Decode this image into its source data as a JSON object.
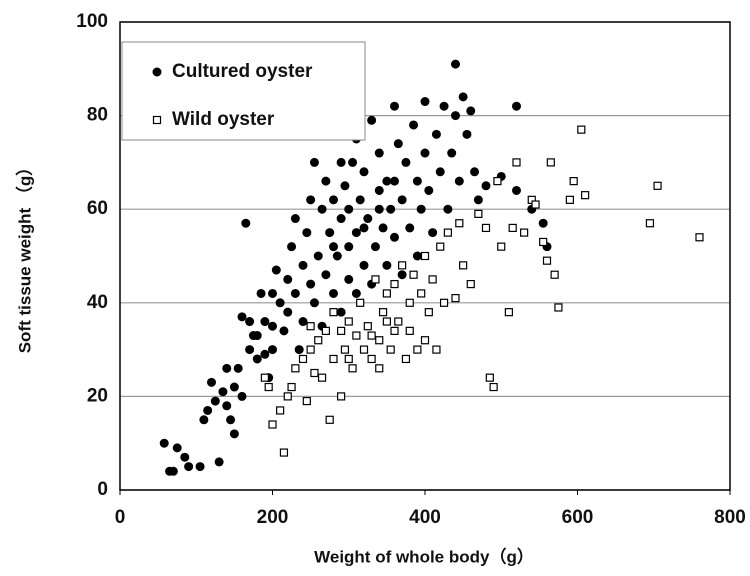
{
  "chart_data": {
    "type": "scatter",
    "xlabel": "Weight of whole body（g）",
    "ylabel": "Soft tissue weight （g）",
    "xlim": [
      0,
      800
    ],
    "ylim": [
      0,
      100
    ],
    "xticks": [
      0,
      200,
      400,
      600,
      800
    ],
    "yticks": [
      0,
      20,
      40,
      60,
      80,
      100
    ],
    "grid": true,
    "legend": "upper left",
    "series": [
      {
        "name": "Cultured oyster",
        "color": "#000000",
        "marker": "circle",
        "filled": true,
        "x": [
          58,
          65,
          70,
          75,
          85,
          90,
          105,
          110,
          115,
          120,
          125,
          130,
          135,
          140,
          145,
          150,
          155,
          160,
          160,
          165,
          170,
          175,
          180,
          185,
          190,
          195,
          200,
          200,
          205,
          210,
          215,
          220,
          220,
          225,
          230,
          235,
          240,
          240,
          245,
          250,
          255,
          255,
          260,
          265,
          265,
          270,
          275,
          280,
          280,
          285,
          290,
          290,
          295,
          300,
          300,
          305,
          310,
          310,
          315,
          320,
          320,
          325,
          330,
          330,
          335,
          340,
          340,
          345,
          350,
          350,
          355,
          360,
          360,
          365,
          370,
          370,
          375,
          380,
          385,
          390,
          390,
          395,
          400,
          400,
          405,
          410,
          415,
          420,
          425,
          430,
          435,
          440,
          440,
          445,
          450,
          455,
          460,
          465,
          470,
          480,
          500,
          520,
          520,
          540,
          555,
          560,
          230,
          250,
          270,
          290,
          310,
          280,
          300,
          320,
          340,
          360,
          200,
          180,
          170,
          190,
          150,
          140
        ],
        "values": [
          10,
          4,
          4,
          9,
          7,
          5,
          5,
          15,
          17,
          23,
          19,
          6,
          21,
          26,
          15,
          12,
          26,
          20,
          37,
          57,
          36,
          33,
          28,
          42,
          36,
          24,
          42,
          30,
          47,
          40,
          34,
          45,
          38,
          52,
          42,
          30,
          48,
          36,
          55,
          44,
          70,
          40,
          50,
          60,
          35,
          46,
          55,
          62,
          42,
          50,
          58,
          38,
          65,
          52,
          45,
          70,
          55,
          42,
          62,
          48,
          68,
          58,
          79,
          44,
          52,
          64,
          72,
          56,
          48,
          66,
          60,
          82,
          54,
          74,
          62,
          46,
          70,
          56,
          78,
          66,
          50,
          60,
          83,
          72,
          64,
          55,
          76,
          68,
          82,
          60,
          72,
          91,
          80,
          66,
          84,
          76,
          81,
          68,
          62,
          65,
          67,
          82,
          64,
          60,
          57,
          52,
          58,
          62,
          66,
          70,
          75,
          52,
          60,
          56,
          60,
          66,
          35,
          33,
          30,
          29,
          22,
          18
        ]
      },
      {
        "name": "Wild oyster",
        "color": "#000000",
        "marker": "square",
        "filled": false,
        "x": [
          215,
          200,
          210,
          220,
          225,
          230,
          190,
          195,
          240,
          245,
          250,
          255,
          260,
          265,
          270,
          275,
          280,
          280,
          290,
          295,
          300,
          305,
          310,
          315,
          320,
          325,
          330,
          335,
          340,
          345,
          350,
          355,
          360,
          365,
          370,
          375,
          380,
          385,
          390,
          395,
          400,
          405,
          410,
          415,
          420,
          425,
          430,
          440,
          445,
          450,
          460,
          470,
          480,
          485,
          490,
          495,
          500,
          510,
          515,
          520,
          530,
          540,
          545,
          555,
          560,
          565,
          570,
          575,
          590,
          595,
          610,
          605,
          695,
          705,
          760,
          250,
          300,
          340,
          360,
          400,
          330,
          290,
          380,
          350
        ],
        "values": [
          8,
          14,
          17,
          20,
          22,
          26,
          24,
          22,
          28,
          19,
          30,
          25,
          32,
          24,
          34,
          15,
          28,
          38,
          20,
          30,
          36,
          26,
          33,
          40,
          30,
          35,
          28,
          45,
          32,
          38,
          42,
          30,
          44,
          36,
          48,
          28,
          40,
          46,
          30,
          42,
          50,
          38,
          45,
          30,
          52,
          40,
          55,
          41,
          57,
          48,
          44,
          59,
          56,
          24,
          22,
          66,
          52,
          38,
          56,
          70,
          55,
          62,
          61,
          53,
          49,
          70,
          46,
          39,
          62,
          66,
          63,
          77,
          57,
          65,
          54,
          35,
          28,
          26,
          34,
          32,
          33,
          34,
          34,
          36
        ]
      }
    ]
  }
}
